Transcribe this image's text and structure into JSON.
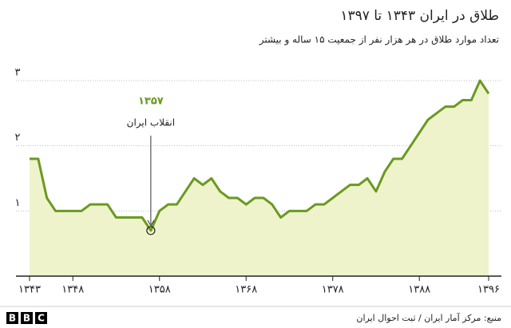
{
  "chart_data": {
    "type": "area",
    "title": "طلاق در ایران ۱۳۴۳ تا ۱۳۹۷",
    "subtitle": "تعداد موارد طلاق در هر هزار نفر از جمعیت ۱۵ ساله و بیشتر",
    "x": [
      1343,
      1344,
      1345,
      1346,
      1347,
      1348,
      1349,
      1350,
      1351,
      1352,
      1353,
      1354,
      1355,
      1356,
      1357,
      1358,
      1359,
      1360,
      1361,
      1362,
      1363,
      1364,
      1365,
      1366,
      1367,
      1368,
      1369,
      1370,
      1371,
      1372,
      1373,
      1374,
      1375,
      1376,
      1377,
      1378,
      1379,
      1380,
      1381,
      1382,
      1383,
      1384,
      1385,
      1386,
      1387,
      1388,
      1389,
      1390,
      1391,
      1392,
      1393,
      1394,
      1395,
      1396
    ],
    "values": [
      1.8,
      1.8,
      1.2,
      1.0,
      1.0,
      1.0,
      1.0,
      1.1,
      1.1,
      1.1,
      0.9,
      0.9,
      0.9,
      0.9,
      0.7,
      1.0,
      1.1,
      1.1,
      1.3,
      1.5,
      1.4,
      1.5,
      1.3,
      1.2,
      1.2,
      1.1,
      1.2,
      1.2,
      1.1,
      0.9,
      1.0,
      1.0,
      1.0,
      1.1,
      1.1,
      1.2,
      1.3,
      1.4,
      1.4,
      1.5,
      1.3,
      1.6,
      1.8,
      1.8,
      2.0,
      2.2,
      2.4,
      2.5,
      2.6,
      2.6,
      2.7,
      2.7,
      3.0,
      2.8
    ],
    "color": "#6a9a1f",
    "fill": "#eef3cc",
    "xlim": [
      1343,
      1396
    ],
    "xticks": [
      {
        "value": 1343,
        "label": "۱۳۴۳"
      },
      {
        "value": 1348,
        "label": "۱۳۴۸"
      },
      {
        "value": 1358,
        "label": "۱۳۵۸"
      },
      {
        "value": 1368,
        "label": "۱۳۶۸"
      },
      {
        "value": 1378,
        "label": "۱۳۷۸"
      },
      {
        "value": 1388,
        "label": "۱۳۸۸"
      },
      {
        "value": 1396,
        "label": "۱۳۹۶"
      }
    ],
    "ylim": [
      0,
      3
    ],
    "yticks": [
      {
        "value": 1,
        "label": "۱"
      },
      {
        "value": 2,
        "label": "۲"
      },
      {
        "value": 3,
        "label": "۳"
      }
    ],
    "grid": true,
    "annotation": {
      "x": 1357,
      "y": 0.7,
      "label": "۱۳۵۷",
      "text": "انقلاب ایران"
    }
  },
  "footer": {
    "source": "منبع: مرکز آمار ایران / ثبت احوال ایران",
    "logo": "BBC"
  }
}
